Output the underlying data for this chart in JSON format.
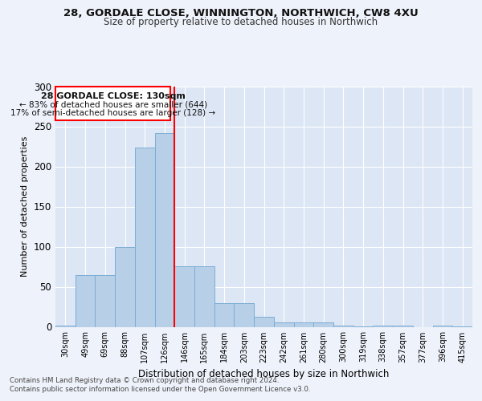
{
  "title1": "28, GORDALE CLOSE, WINNINGTON, NORTHWICH, CW8 4XU",
  "title2": "Size of property relative to detached houses in Northwich",
  "xlabel": "Distribution of detached houses by size in Northwich",
  "ylabel": "Number of detached properties",
  "bar_labels": [
    "30sqm",
    "49sqm",
    "69sqm",
    "88sqm",
    "107sqm",
    "126sqm",
    "146sqm",
    "165sqm",
    "184sqm",
    "203sqm",
    "223sqm",
    "242sqm",
    "261sqm",
    "280sqm",
    "300sqm",
    "319sqm",
    "338sqm",
    "357sqm",
    "377sqm",
    "396sqm",
    "415sqm"
  ],
  "bar_values": [
    2,
    65,
    65,
    100,
    224,
    242,
    76,
    76,
    30,
    30,
    13,
    6,
    6,
    6,
    2,
    1,
    2,
    2,
    0,
    2,
    1
  ],
  "bar_color": "#b8cfe8",
  "bar_edge_color": "#7aadd4",
  "annotation_title": "28 GORDALE CLOSE: 130sqm",
  "annotation_line1": "← 83% of detached houses are smaller (644)",
  "annotation_line2": "17% of semi-detached houses are larger (128) →",
  "red_line_x": 5.5,
  "ylim": [
    0,
    300
  ],
  "yticks": [
    0,
    50,
    100,
    150,
    200,
    250,
    300
  ],
  "footer1": "Contains HM Land Registry data © Crown copyright and database right 2024.",
  "footer2": "Contains public sector information licensed under the Open Government Licence v3.0.",
  "bg_color": "#eef2fa",
  "plot_bg_color": "#dce6f5"
}
